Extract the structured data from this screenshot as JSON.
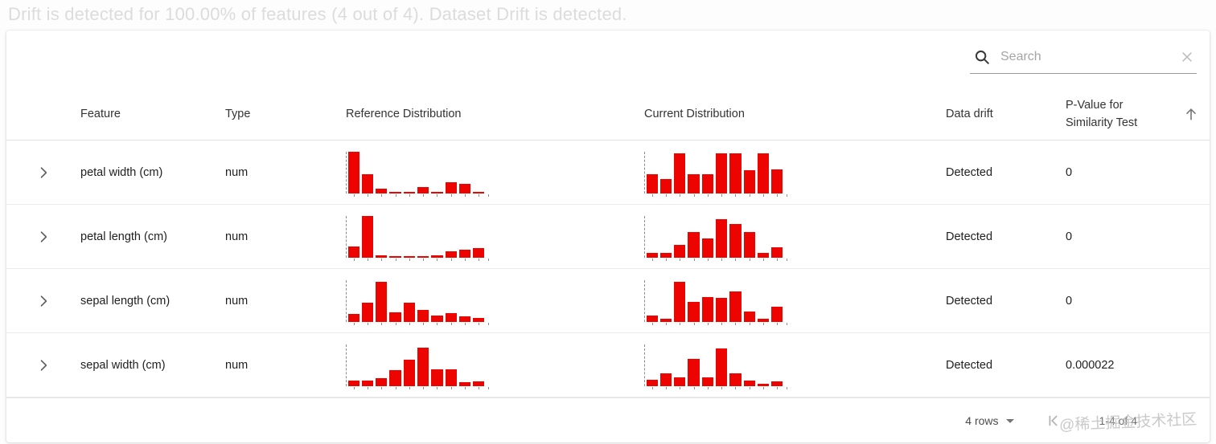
{
  "page": {
    "title": "Drift is detected for 100.00% of features (4 out of 4). Dataset Drift is detected."
  },
  "search": {
    "placeholder": "Search"
  },
  "colors": {
    "bar": "#ed0400",
    "axis": "#8d8d8d",
    "title_muted": "#dcdcdc"
  },
  "table": {
    "columns": [
      "Feature",
      "Type",
      "Reference Distribution",
      "Current Distribution",
      "Data drift",
      "P-Value for Similarity Test"
    ],
    "sort_icon": "arrow-up",
    "rows": [
      {
        "feature": "petal width (cm)",
        "type": "num",
        "data_drift": "Detected",
        "p_value": "0",
        "reference_distribution": {
          "type": "bar",
          "values": [
            100,
            45,
            10,
            1,
            1,
            14,
            3,
            26,
            22,
            3
          ]
        },
        "current_distribution": {
          "type": "bar",
          "values": [
            45,
            33,
            95,
            45,
            45,
            95,
            95,
            55,
            95,
            57
          ]
        }
      },
      {
        "feature": "petal length (cm)",
        "type": "num",
        "data_drift": "Detected",
        "p_value": "0",
        "reference_distribution": {
          "type": "bar",
          "values": [
            26,
            100,
            5,
            1,
            1,
            3,
            5,
            15,
            18,
            23
          ]
        },
        "current_distribution": {
          "type": "bar",
          "values": [
            10,
            10,
            30,
            60,
            45,
            92,
            80,
            60,
            10,
            25
          ]
        }
      },
      {
        "feature": "sepal length (cm)",
        "type": "num",
        "data_drift": "Detected",
        "p_value": "0",
        "reference_distribution": {
          "type": "bar",
          "values": [
            18,
            45,
            95,
            22,
            45,
            28,
            15,
            20,
            12,
            9
          ]
        },
        "current_distribution": {
          "type": "bar",
          "values": [
            15,
            6,
            95,
            48,
            58,
            56,
            73,
            25,
            6,
            36
          ]
        }
      },
      {
        "feature": "sepal width (cm)",
        "type": "num",
        "data_drift": "Detected",
        "p_value": "0.000022",
        "reference_distribution": {
          "type": "bar",
          "values": [
            12,
            12,
            18,
            38,
            62,
            92,
            40,
            40,
            8,
            10
          ]
        },
        "current_distribution": {
          "type": "bar",
          "values": [
            14,
            30,
            20,
            65,
            20,
            90,
            30,
            13,
            4,
            11
          ]
        }
      }
    ]
  },
  "pagination": {
    "rows_label": "4 rows",
    "range_label": "1-4 of 4"
  },
  "watermark": "@稀土掘金技术社区"
}
